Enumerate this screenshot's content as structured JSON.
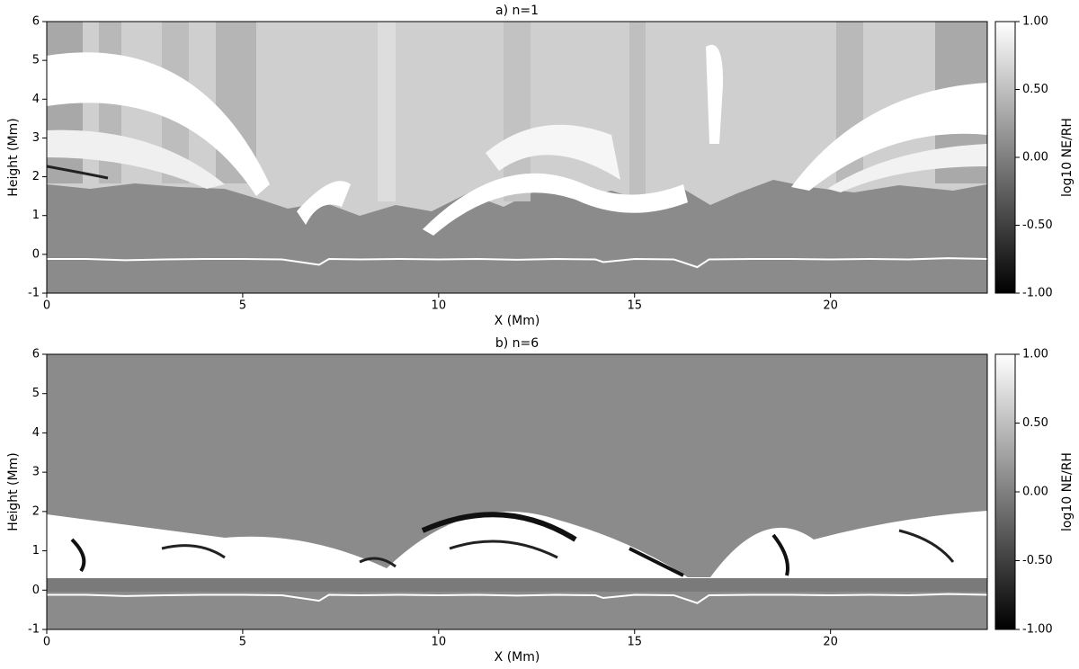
{
  "chart_data": [
    {
      "type": "heatmap",
      "title": "a) n=1",
      "xlabel": "X (Mm)",
      "ylabel": "Height (Mm)",
      "xlim": [
        0,
        24
      ],
      "ylim": [
        -1,
        6
      ],
      "xticks": [
        0,
        5,
        10,
        15,
        20
      ],
      "yticks": [
        -1,
        0,
        1,
        2,
        3,
        4,
        5,
        6
      ],
      "colorbar": {
        "label": "log10 NE/RH",
        "lim": [
          -1,
          1
        ],
        "ticks": [
          {
            "value": 1,
            "label": "1.00"
          },
          {
            "value": 0.5,
            "label": "0.50"
          },
          {
            "value": 0,
            "label": "0.00"
          },
          {
            "value": -0.5,
            "label": "-0.50"
          },
          {
            "value": -1,
            "label": "-1.00"
          }
        ]
      },
      "line": {
        "color": "#ffffff",
        "x": [
          0,
          1,
          2,
          3,
          4,
          5,
          6,
          6.95,
          7.2,
          8,
          9,
          10,
          11,
          12,
          13,
          14,
          14.2,
          15,
          16,
          16.6,
          16.9,
          18,
          19,
          20,
          21,
          22,
          23,
          24
        ],
        "values": [
          -0.12,
          -0.12,
          -0.15,
          -0.13,
          -0.12,
          -0.12,
          -0.13,
          -0.27,
          -0.12,
          -0.13,
          -0.12,
          -0.13,
          -0.12,
          -0.14,
          -0.12,
          -0.13,
          -0.2,
          -0.12,
          -0.13,
          -0.33,
          -0.13,
          -0.12,
          -0.12,
          -0.13,
          -0.12,
          -0.13,
          -0.1,
          -0.12
        ]
      }
    },
    {
      "type": "heatmap",
      "title": "b) n=6",
      "xlabel": "X (Mm)",
      "ylabel": "Height (Mm)",
      "xlim": [
        0,
        24
      ],
      "ylim": [
        -1,
        6
      ],
      "xticks": [
        0,
        5,
        10,
        15,
        20
      ],
      "yticks": [
        -1,
        0,
        1,
        2,
        3,
        4,
        5,
        6
      ],
      "colorbar": {
        "label": "log10 NE/RH",
        "lim": [
          -1,
          1
        ],
        "ticks": [
          {
            "value": 1,
            "label": "1.00"
          },
          {
            "value": 0.5,
            "label": "0.50"
          },
          {
            "value": 0,
            "label": "0.00"
          },
          {
            "value": -0.5,
            "label": "-0.50"
          },
          {
            "value": -1,
            "label": "-1.00"
          }
        ]
      },
      "line": {
        "color": "#ffffff",
        "x": [
          0,
          1,
          2,
          3,
          4,
          5,
          6,
          6.95,
          7.2,
          8,
          9,
          10,
          11,
          12,
          13,
          14,
          14.2,
          15,
          16,
          16.6,
          16.9,
          18,
          19,
          20,
          21,
          22,
          23,
          24
        ],
        "values": [
          -0.12,
          -0.12,
          -0.15,
          -0.13,
          -0.12,
          -0.12,
          -0.13,
          -0.27,
          -0.12,
          -0.13,
          -0.12,
          -0.13,
          -0.12,
          -0.14,
          -0.12,
          -0.13,
          -0.2,
          -0.12,
          -0.13,
          -0.33,
          -0.13,
          -0.12,
          -0.12,
          -0.13,
          -0.12,
          -0.13,
          -0.1,
          -0.12
        ]
      }
    }
  ]
}
